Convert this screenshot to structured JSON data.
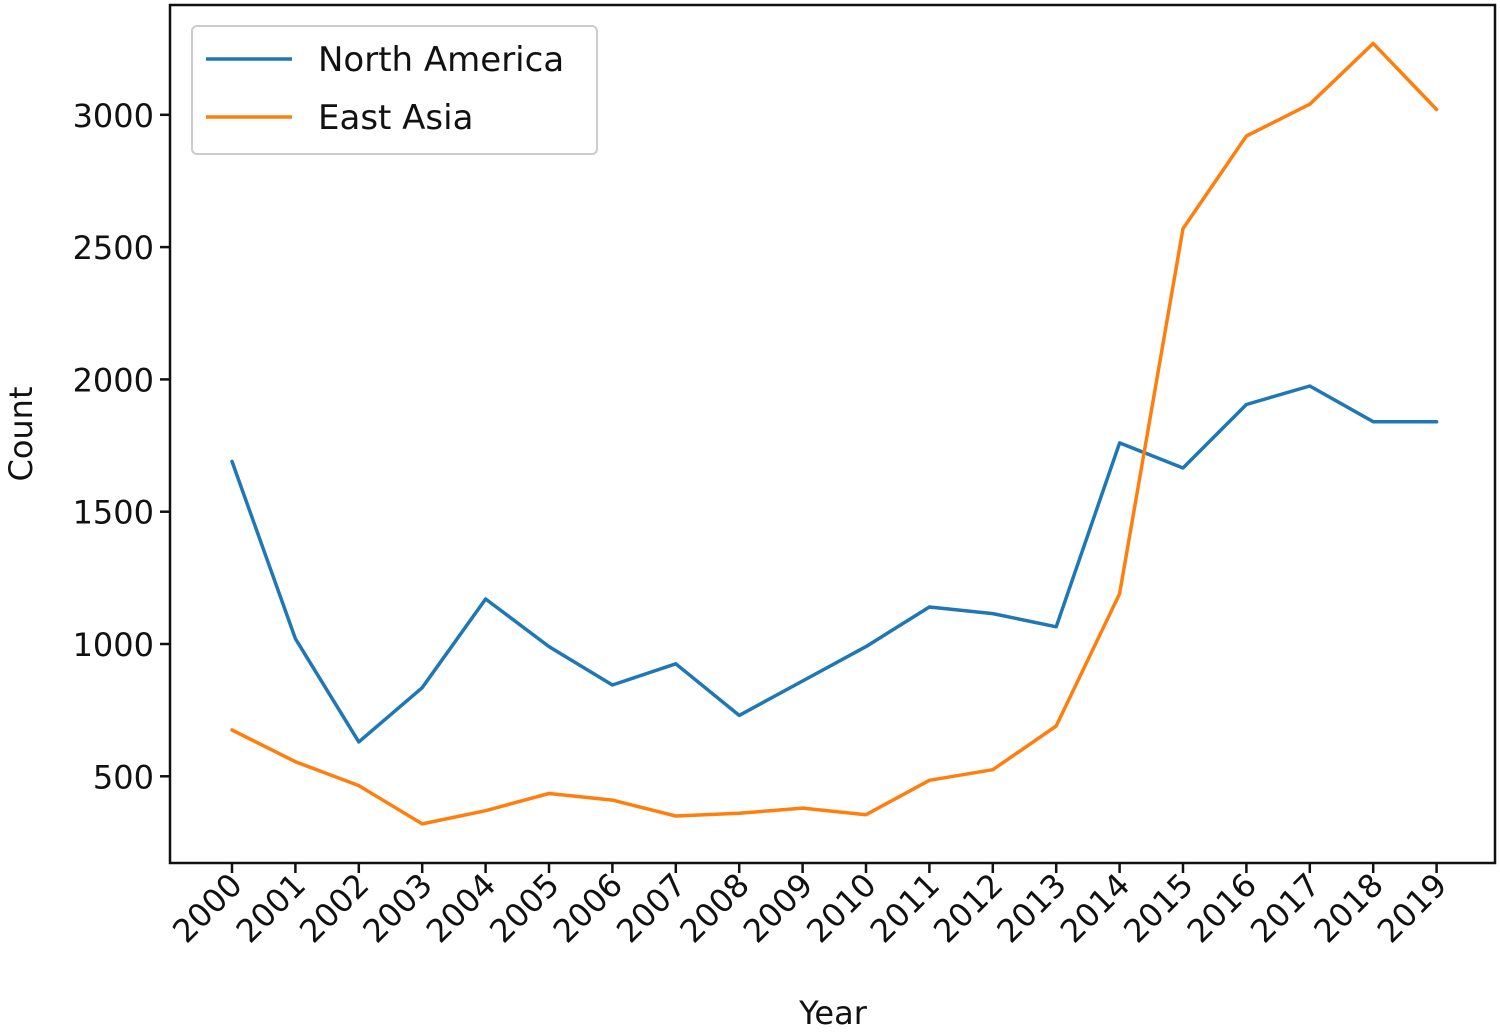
{
  "chart_data": {
    "type": "line",
    "title": "",
    "xlabel": "Year",
    "ylabel": "Count",
    "categories": [
      "2000",
      "2001",
      "2002",
      "2003",
      "2004",
      "2005",
      "2006",
      "2007",
      "2008",
      "2009",
      "2010",
      "2011",
      "2012",
      "2013",
      "2014",
      "2015",
      "2016",
      "2017",
      "2018",
      "2019"
    ],
    "yticks": [
      500,
      1000,
      1500,
      2000,
      2500,
      3000
    ],
    "ylim": [
      160,
      3410
    ],
    "grid": false,
    "legend_position": "top-left",
    "series": [
      {
        "name": "North America",
        "color": "#1f77b4",
        "values": [
          1690,
          1020,
          630,
          835,
          1170,
          990,
          845,
          925,
          730,
          860,
          990,
          1140,
          1115,
          1065,
          1760,
          1665,
          1905,
          1975,
          1840,
          1840
        ]
      },
      {
        "name": "East Asia",
        "color": "#ff7f0e",
        "values": [
          675,
          555,
          465,
          320,
          370,
          435,
          410,
          350,
          360,
          380,
          355,
          485,
          525,
          690,
          1190,
          2570,
          2920,
          3040,
          3270,
          3020
        ]
      }
    ]
  }
}
